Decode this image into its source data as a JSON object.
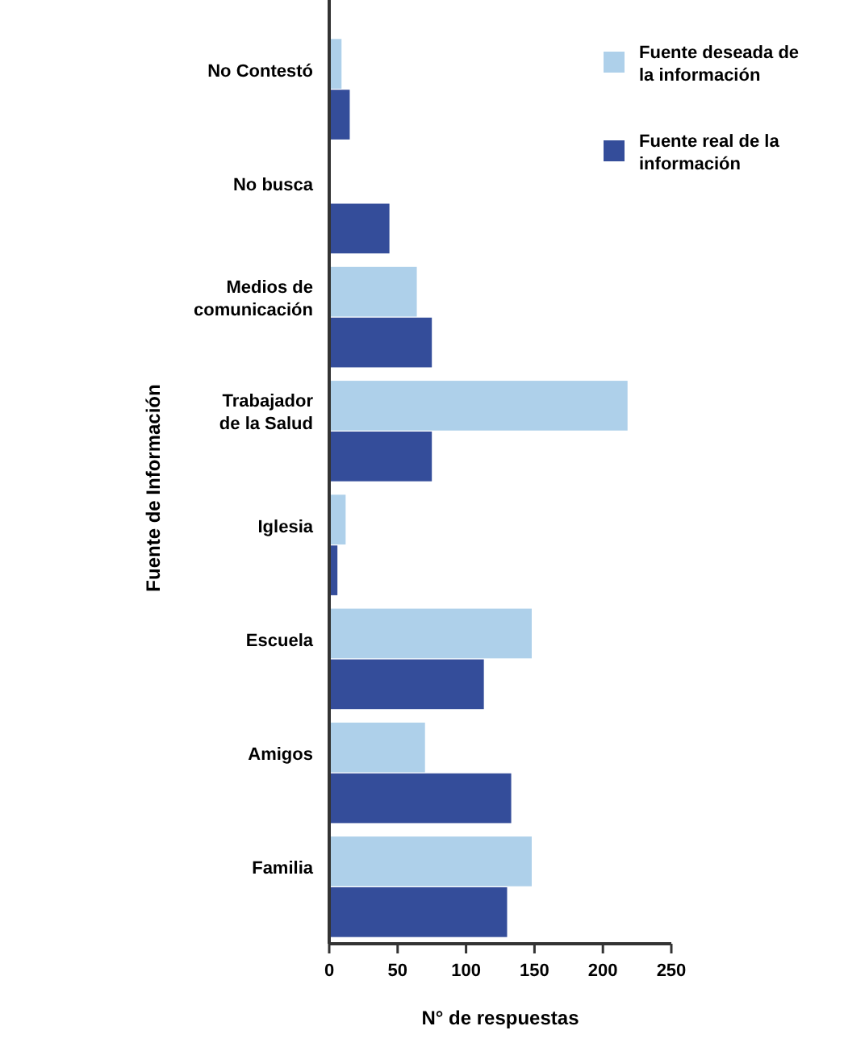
{
  "chart_data": {
    "type": "bar",
    "orientation": "horizontal",
    "xlabel": "N° de respuestas",
    "ylabel": "Fuente de Información",
    "categories": [
      "No Contestó",
      "No busca",
      "Medios de comunicación",
      "Trabajador de la Salud",
      "Iglesia",
      "Escuela",
      "Amigos",
      "Familia"
    ],
    "series": [
      {
        "name": "Fuente deseada de la información",
        "color": "#aed0ea",
        "values": [
          9,
          null,
          64,
          218,
          12,
          148,
          70,
          148
        ]
      },
      {
        "name": "Fuente real de la información",
        "color": "#344d9a",
        "values": [
          15,
          44,
          75,
          75,
          6,
          113,
          133,
          130
        ]
      }
    ],
    "xlim": [
      0,
      250
    ],
    "xticks": [
      0,
      50,
      100,
      150,
      200,
      250
    ],
    "legend": "top right",
    "grid": false
  }
}
